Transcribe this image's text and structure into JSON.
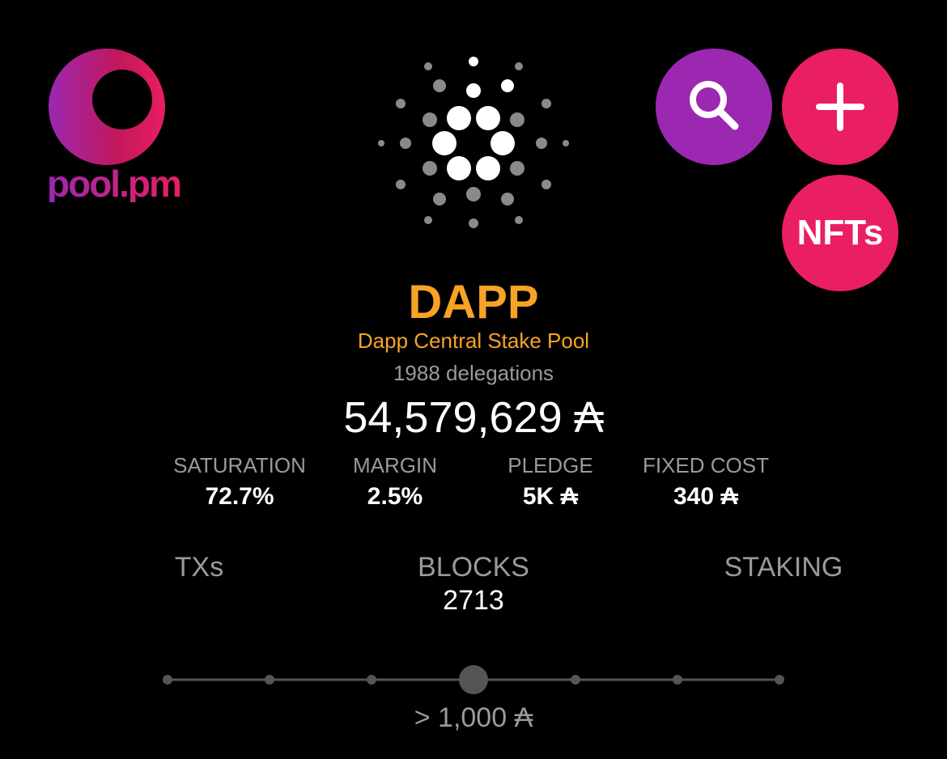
{
  "header": {
    "logo_text": "pool.pm",
    "search_icon": "search-icon",
    "add_icon": "plus-icon",
    "nfts_label": "NFTs"
  },
  "pool": {
    "ticker": "DAPP",
    "name": "Dapp Central Stake Pool",
    "delegations": "1988 delegations",
    "total_stake": "54,579,629 ₳"
  },
  "stats": [
    {
      "label": "SATURATION",
      "value": "72.7%"
    },
    {
      "label": "MARGIN",
      "value": "2.5%"
    },
    {
      "label": "PLEDGE",
      "value": "5K ₳"
    },
    {
      "label": "FIXED COST",
      "value": "340 ₳"
    }
  ],
  "tabs": [
    {
      "label": "TXs",
      "count": ""
    },
    {
      "label": "BLOCKS",
      "count": "2713"
    },
    {
      "label": "STAKING",
      "count": ""
    }
  ],
  "filter": {
    "label": "> 1,000 ₳",
    "steps": 7,
    "selected_index": 3
  },
  "colors": {
    "accent_orange": "#f7a325",
    "purple": "#9c27b0",
    "pink": "#e91e63",
    "muted": "#9a9a9a"
  }
}
